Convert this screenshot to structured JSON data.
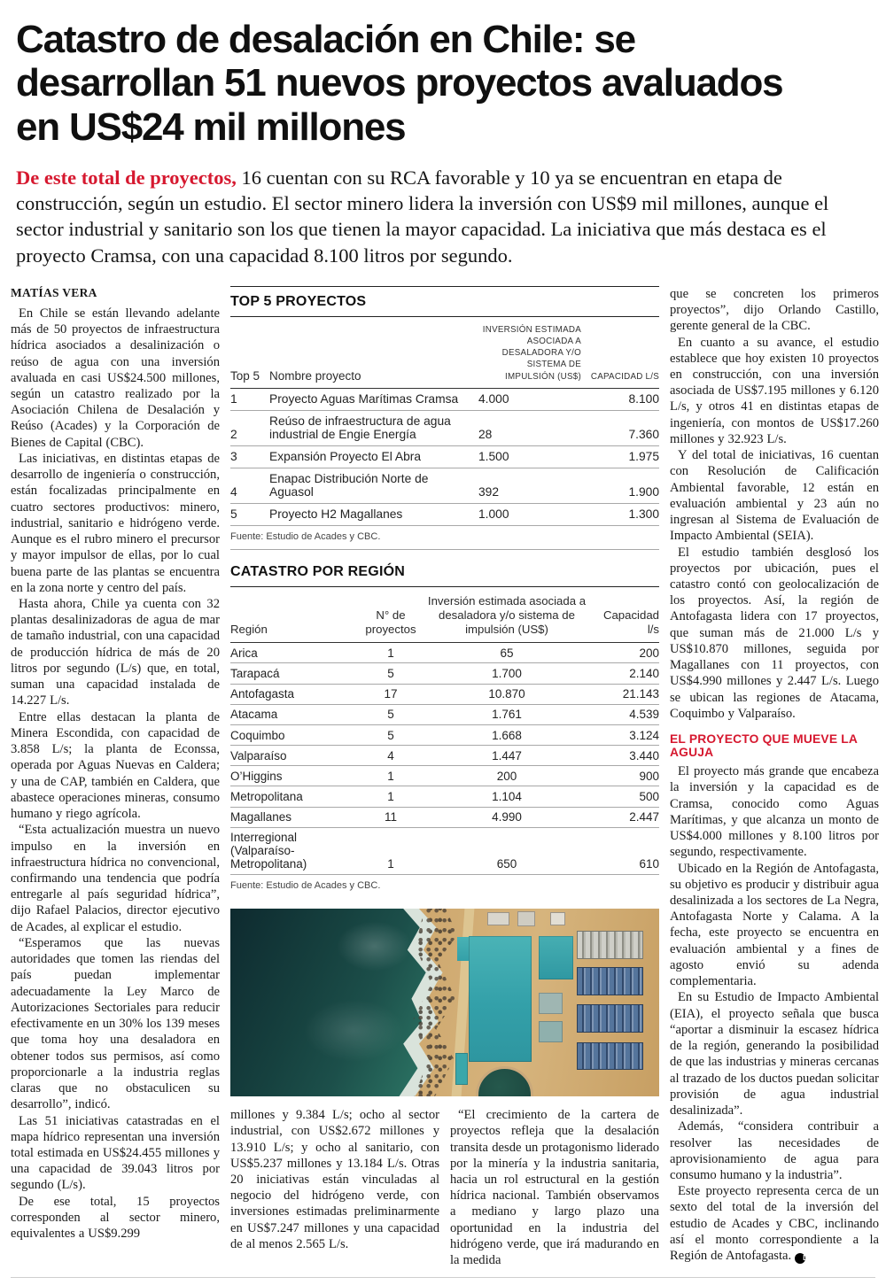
{
  "colors": {
    "accent_red": "#d6182f",
    "text_black": "#1a1a1a",
    "rule_dark": "#222222",
    "rule_light": "#a8a8a8",
    "ocean": "#1c4f4a",
    "sand": "#c99f63",
    "roof_teal": "#3aacb0",
    "equipment_blue": "#4d79ad",
    "tank_green": "#1d4a41"
  },
  "page": {
    "headline_lines": {
      "l1": "Catastro de desalación en Chile: se",
      "l2": "desarrollan 51 nuevos proyectos avaluados",
      "l3": "en US$24 mil millones"
    },
    "deck_lead": "De este total de proyectos,",
    "deck_rest": " 16 cuentan con su RCA favorable y 10 ya se encuentran en etapa de construcción, según un estudio. El sector minero lidera la inversión con US$9 mil millones, aunque el sector industrial y sanitario son los que tienen la mayor capacidad. La iniciativa que más destaca es el proyecto Cramsa, con una capacidad 8.100 litros por segundo.",
    "byline": "MATÍAS VERA",
    "end_mark": "D"
  },
  "left_column": {
    "paragraphs": {
      "p0": "En Chile se están llevando adelante más de 50 proyectos de infraestructura hídrica asociados a desalinización o reúso de agua con una inversión avaluada en casi US$24.500 millones, según un catastro realizado por la Asociación Chilena de Desalación y Reúso (Acades) y la Corporación de Bienes de Capital (CBC).",
      "p1": "Las iniciativas, en distintas etapas de desarrollo de ingeniería o construcción, están focalizadas principalmente en cuatro sectores productivos: minero, industrial, sanitario e hidrógeno verde. Aunque es el rubro minero el precursor y mayor impulsor de ellas, por lo cual buena parte de las plantas se encuentra en la zona norte y centro del país.",
      "p2": "Hasta ahora, Chile ya cuenta con 32 plantas desalinizadoras de agua de mar de tamaño industrial, con una capacidad de producción hídrica de más de 20 litros por segundo (L/s) que, en total, suman una capacidad instalada de 14.227 L/s.",
      "p3": "Entre ellas destacan la planta de Minera Escondida, con capacidad de 3.858 L/s; la planta de Econssa, operada por Aguas Nuevas en Caldera; y una de CAP, también en Caldera, que abastece operaciones mineras, consumo humano y riego agrícola.",
      "p4": "“Esta actualización muestra un nuevo impulso en la inversión en infraestructura hídrica no convencional, confirmando una tendencia que podría entregarle al país seguridad hídrica”, dijo Rafael Palacios, director ejecutivo de Acades, al explicar el estudio.",
      "p5": "“Esperamos que las nuevas autoridades que tomen las riendas del país puedan implementar adecuadamente la Ley Marco de Autorizaciones Sectoriales para reducir efectivamente en un 30% los 139 meses que toma hoy una desaladora en obtener todos sus permisos, así como proporcionarle a la industria reglas claras que no obstaculicen su desarrollo”, indicó.",
      "p6": "Las 51 iniciativas catastradas en el mapa hídrico representan una inversión total estimada en US$24.455 millones y una capacidad de 39.043 litros por segundo (L/s).",
      "p7": "De ese total, 15 proyectos corresponden al sector minero, equivalentes a US$9.299"
    }
  },
  "top5_table": {
    "title": "TOP 5 PROYECTOS",
    "headers": {
      "rank": "Top 5",
      "name": "Nombre proyecto",
      "investment": "Inversión estimada asociada a desaladora y/o sistema de impulsión (US$)",
      "capacity": "Capacidad L/s"
    },
    "rows": {
      "r0": {
        "rank": "1",
        "name": "Proyecto Aguas Marítimas Cramsa",
        "investment": "4.000",
        "capacity": "8.100"
      },
      "r1": {
        "rank": "2",
        "name": "Reúso de infraestructura de agua industrial de Engie Energía",
        "investment": "28",
        "capacity": "7.360"
      },
      "r2": {
        "rank": "3",
        "name": "Expansión Proyecto El Abra",
        "investment": "1.500",
        "capacity": "1.975"
      },
      "r3": {
        "rank": "4",
        "name": "Enapac Distribución Norte de Aguasol",
        "investment": "392",
        "capacity": "1.900"
      },
      "r4": {
        "rank": "5",
        "name": "Proyecto H2 Magallanes",
        "investment": "1.000",
        "capacity": "1.300"
      }
    },
    "source": "Fuente: Estudio de Acades y CBC."
  },
  "region_table": {
    "title": "CATASTRO POR REGIÓN",
    "headers": {
      "region": "Región",
      "count": "N° de proyectos",
      "investment": "Inversión estimada asociada a desaladora y/o sistema de impulsión (US$)",
      "capacity": "Capacidad l/s"
    },
    "rows": {
      "r0": {
        "region": "Arica",
        "count": "1",
        "investment": "65",
        "capacity": "200"
      },
      "r1": {
        "region": "Tarapacá",
        "count": "5",
        "investment": "1.700",
        "capacity": "2.140"
      },
      "r2": {
        "region": "Antofagasta",
        "count": "17",
        "investment": "10.870",
        "capacity": "21.143"
      },
      "r3": {
        "region": "Atacama",
        "count": "5",
        "investment": "1.761",
        "capacity": "4.539"
      },
      "r4": {
        "region": "Coquimbo",
        "count": "5",
        "investment": "1.668",
        "capacity": "3.124"
      },
      "r5": {
        "region": "Valparaíso",
        "count": "4",
        "investment": "1.447",
        "capacity": "3.440"
      },
      "r6": {
        "region": "O’Higgins",
        "count": "1",
        "investment": "200",
        "capacity": "900"
      },
      "r7": {
        "region": "Metropolitana",
        "count": "1",
        "investment": "1.104",
        "capacity": "500"
      },
      "r8": {
        "region": "Magallanes",
        "count": "11",
        "investment": "4.990",
        "capacity": "2.447"
      },
      "r9": {
        "region": "Interregional (Valparaíso- Metropolitana)",
        "count": "1",
        "investment": "650",
        "capacity": "610"
      }
    },
    "source": "Fuente: Estudio de Acades y CBC."
  },
  "continuation": {
    "col1": "millones y 9.384 L/s; ocho al sector industrial, con US$2.672 millones y 13.910 L/s; y ocho al sanitario, con US$5.237 millones y 13.184 L/s. Otras 20 iniciativas están vinculadas al negocio del hidrógeno verde, con inversiones estimadas preliminarmente en US$7.247 millones y una capacidad de al menos 2.565 L/s.",
    "col2": "“El crecimiento de la cartera de proyectos refleja que la desalación transita desde un protagonismo liderado por la minería y la industria sanitaria, hacia un rol estructural en la gestión hídrica nacional. También observamos a mediano y largo plazo una oportunidad en la industria del hidrógeno verde, que irá madurando en la medida"
  },
  "right_column": {
    "paragraphs_top": {
      "p0": "que se concreten los primeros proyectos”, dijo Orlando Castillo, gerente general de la CBC.",
      "p1": "En cuanto a su avance, el estudio establece que hoy existen 10 proyectos en construcción, con una inversión asociada de US$7.195 millones y 6.120 L/s, y otros 41 en distintas etapas de ingeniería, con montos de US$17.260 millones y 32.923 L/s.",
      "p2": "Y del total de iniciativas, 16 cuentan con Resolución de Calificación Ambiental favorable, 12 están en evaluación ambiental y 23 aún no ingresan al Sistema de Evaluación de Impacto Ambiental (SEIA).",
      "p3": "El estudio también desglosó los proyectos por ubicación, pues el catastro contó con geolocalización de los proyectos. Así, la región de Antofagasta lidera con 17 proyectos, que suman más de 21.000 L/s y US$10.870 millones, seguida por Magallanes con 11 proyectos, con US$4.990 millones y 2.447 L/s. Luego se ubican las regiones de Atacama, Coquimbo y Valparaíso."
    },
    "subhead": "EL PROYECTO QUE MUEVE LA AGUJA",
    "paragraphs_bottom": {
      "p0": "El proyecto más grande que encabeza la inversión y la capacidad es de Cramsa, conocido como Aguas Marítimas, y que alcanza un monto de US$4.000 millones y 8.100 litros por segundo, respectivamente.",
      "p1": "Ubicado en la Región de Antofagasta, su objetivo es producir y distribuir agua desalinizada a los sectores de La Negra, Antofagasta Norte y Calama. A la fecha, este proyecto se encuentra en evaluación ambiental y a fines de agosto envió su adenda complementaria.",
      "p2": "En su Estudio de Impacto Ambiental (EIA), el proyecto señala que busca “aportar a disminuir la escasez hídrica de la región, generando la posibilidad de que las industrias y mineras cercanas al trazado de los ductos puedan solicitar provisión de agua industrial desalinizada”.",
      "p3": "Además, “considera contribuir a resolver las necesidades de aprovisionamiento de agua para consumo humano y la industria”.",
      "p4": "Este proyecto representa cerca de un sexto del total de la inversión del estudio de Acades y CBC, inclinando así el monto correspondiente a la Región de Antofagasta."
    }
  }
}
